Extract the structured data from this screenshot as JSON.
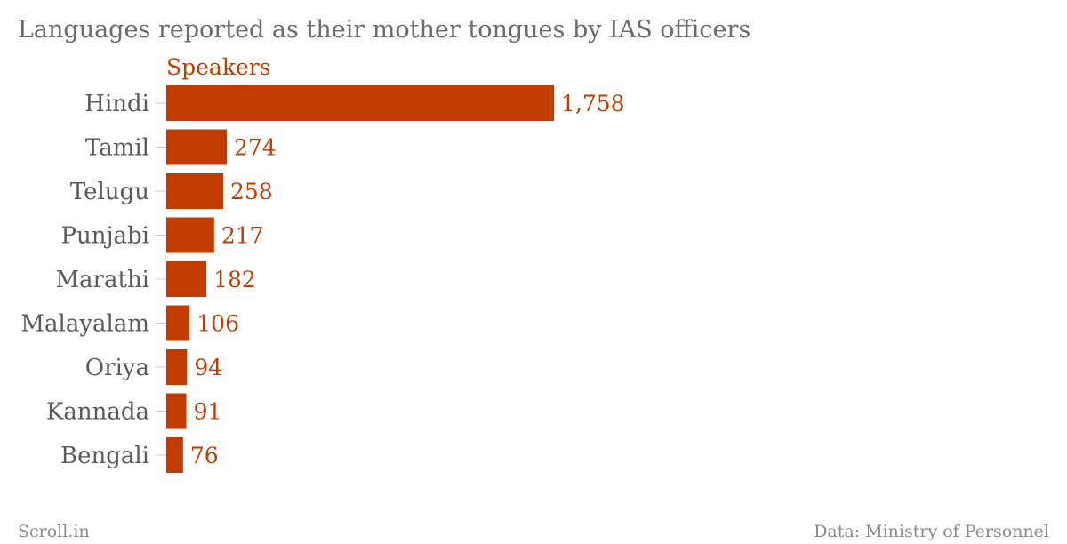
{
  "chart_data": {
    "type": "bar",
    "orientation": "horizontal",
    "title": "Languages reported as their mother tongues by IAS officers",
    "categories": [
      "Hindi",
      "Tamil",
      "Telugu",
      "Punjabi",
      "Marathi",
      "Malayalam",
      "Oriya",
      "Kannada",
      "Bengali"
    ],
    "series": [
      {
        "name": "Speakers",
        "values": [
          1758,
          274,
          258,
          217,
          182,
          106,
          94,
          91,
          76
        ],
        "value_labels": [
          "1,758",
          "274",
          "258",
          "217",
          "182",
          "106",
          "94",
          "91",
          "76"
        ]
      }
    ],
    "xlim": [
      0,
      1758
    ],
    "grid": false,
    "legend": "none",
    "colors": {
      "bar": "#c23b00",
      "label": "#c23b00"
    }
  },
  "footer": {
    "source_left": "Scroll.in",
    "source_right": "Data: Ministry of Personnel"
  }
}
